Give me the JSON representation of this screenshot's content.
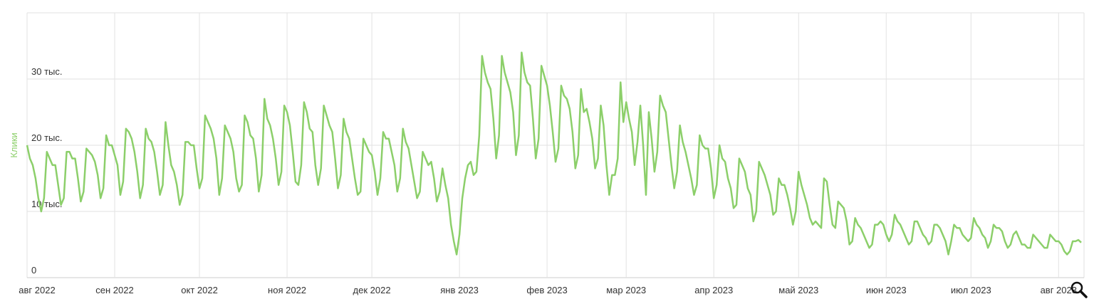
{
  "chart_data": {
    "type": "line",
    "y_label": "Клики",
    "color": "#8ccf6a",
    "grid": true,
    "xlim": [
      0,
      374
    ],
    "xticks": [
      {
        "value": 0,
        "label": "авг 2022"
      },
      {
        "value": 31,
        "label": "сен 2022"
      },
      {
        "value": 61,
        "label": "окт 2022"
      },
      {
        "value": 92,
        "label": "ноя 2022"
      },
      {
        "value": 122,
        "label": "дек 2022"
      },
      {
        "value": 153,
        "label": "янв 2023"
      },
      {
        "value": 184,
        "label": "фев 2023"
      },
      {
        "value": 212,
        "label": "мар 2023"
      },
      {
        "value": 243,
        "label": "апр 2023"
      },
      {
        "value": 273,
        "label": "май 2023"
      },
      {
        "value": 304,
        "label": "июн 2023"
      },
      {
        "value": 334,
        "label": "июл 2023"
      },
      {
        "value": 365,
        "label": "авг 2023"
      }
    ],
    "ylim": [
      0,
      40000
    ],
    "yticks": [
      0,
      {
        "value": 10000,
        "label": "10 тыс."
      },
      {
        "value": 20000,
        "label": "20 тыс."
      },
      {
        "value": 30000,
        "label": "30 тыс."
      }
    ],
    "values": [
      20000,
      18000,
      17000,
      15000,
      12000,
      10000,
      12000,
      19000,
      18000,
      17000,
      17000,
      14000,
      11000,
      12000,
      19000,
      19000,
      18000,
      18000,
      15000,
      11500,
      13000,
      19500,
      19000,
      18500,
      17500,
      15500,
      12000,
      13500,
      21500,
      20000,
      20000,
      18500,
      17000,
      12500,
      14500,
      22500,
      22000,
      21000,
      19000,
      16000,
      12000,
      14000,
      22500,
      21000,
      20500,
      19000,
      16000,
      12500,
      14000,
      23500,
      20000,
      17000,
      16000,
      14000,
      11000,
      12500,
      20500,
      20500,
      20000,
      20000,
      16500,
      13500,
      15000,
      24500,
      23500,
      22500,
      21000,
      18000,
      12500,
      15000,
      23000,
      22000,
      21000,
      19000,
      15000,
      13000,
      14000,
      24500,
      23500,
      21500,
      21000,
      18000,
      13000,
      15500,
      27000,
      24000,
      23000,
      21000,
      18000,
      14000,
      16000,
      26000,
      25000,
      23000,
      19000,
      14500,
      14000,
      17000,
      26500,
      25000,
      22500,
      22000,
      17000,
      14000,
      16500,
      26000,
      24500,
      23000,
      22000,
      18000,
      13500,
      15500,
      24000,
      22000,
      21000,
      18000,
      15000,
      12500,
      13000,
      21000,
      20000,
      19000,
      18500,
      16000,
      12500,
      15000,
      22000,
      21000,
      21000,
      19000,
      17000,
      13000,
      15000,
      22500,
      20500,
      19500,
      17000,
      14500,
      12000,
      13000,
      19000,
      18000,
      17000,
      17500,
      15000,
      11500,
      13000,
      16500,
      14000,
      12000,
      8000,
      5500,
      3500,
      6500,
      12000,
      15000,
      17000,
      17500,
      15500,
      16000,
      21500,
      33500,
      31000,
      29500,
      28500,
      24000,
      18000,
      21500,
      33500,
      31000,
      29500,
      28000,
      25000,
      18500,
      21500,
      34000,
      31000,
      29500,
      29000,
      24000,
      18000,
      21000,
      32000,
      30500,
      29000,
      26000,
      22000,
      17500,
      19500,
      29000,
      27500,
      27000,
      25500,
      22000,
      16500,
      18500,
      28500,
      25000,
      25500,
      23500,
      21000,
      16500,
      18000,
      26000,
      23000,
      17000,
      12500,
      15500,
      15500,
      18000,
      29500,
      23500,
      26500,
      24000,
      22000,
      17000,
      20500,
      26000,
      20000,
      12500,
      25000,
      21000,
      16000,
      19000,
      27500,
      26000,
      25000,
      21000,
      17000,
      13500,
      16000,
      23000,
      20500,
      19000,
      17000,
      15000,
      12500,
      14000,
      21500,
      20000,
      19500,
      19500,
      16500,
      12000,
      14000,
      20000,
      18000,
      17500,
      15000,
      13500,
      10500,
      11000,
      18000,
      17000,
      16000,
      13500,
      12500,
      8500,
      10000,
      17500,
      16500,
      15500,
      14000,
      12500,
      9500,
      10000,
      15000,
      14000,
      14000,
      12500,
      10500,
      8000,
      10000,
      16000,
      14000,
      12500,
      11000,
      9000,
      8000,
      8500,
      8000,
      7500,
      15000,
      14500,
      11000,
      8000,
      7500,
      11500,
      11000,
      10500,
      8500,
      5000,
      5500,
      9000,
      8000,
      7500,
      6500,
      5500,
      4500,
      5000,
      8000,
      8000,
      8500,
      8000,
      6500,
      5500,
      6500,
      9500,
      8500,
      8000,
      7000,
      6000,
      5000,
      5500,
      8500,
      8500,
      7500,
      6500,
      6000,
      5000,
      5500,
      8000,
      8000,
      7500,
      6500,
      5500,
      3500,
      5500,
      8000,
      7500,
      7500,
      6500,
      6000,
      5500,
      6000,
      9000,
      8000,
      7500,
      6500,
      6000,
      4500,
      5500,
      8000,
      7500,
      7500,
      7000,
      5500,
      4500,
      5000,
      6500,
      7000,
      6000,
      5000,
      5000,
      4500,
      4500,
      6500,
      6000,
      5500,
      5000,
      4500,
      4500,
      6500,
      6000,
      5500,
      5500,
      5000,
      4000,
      3500,
      4000,
      5500,
      5500,
      5700,
      5300
    ]
  }
}
